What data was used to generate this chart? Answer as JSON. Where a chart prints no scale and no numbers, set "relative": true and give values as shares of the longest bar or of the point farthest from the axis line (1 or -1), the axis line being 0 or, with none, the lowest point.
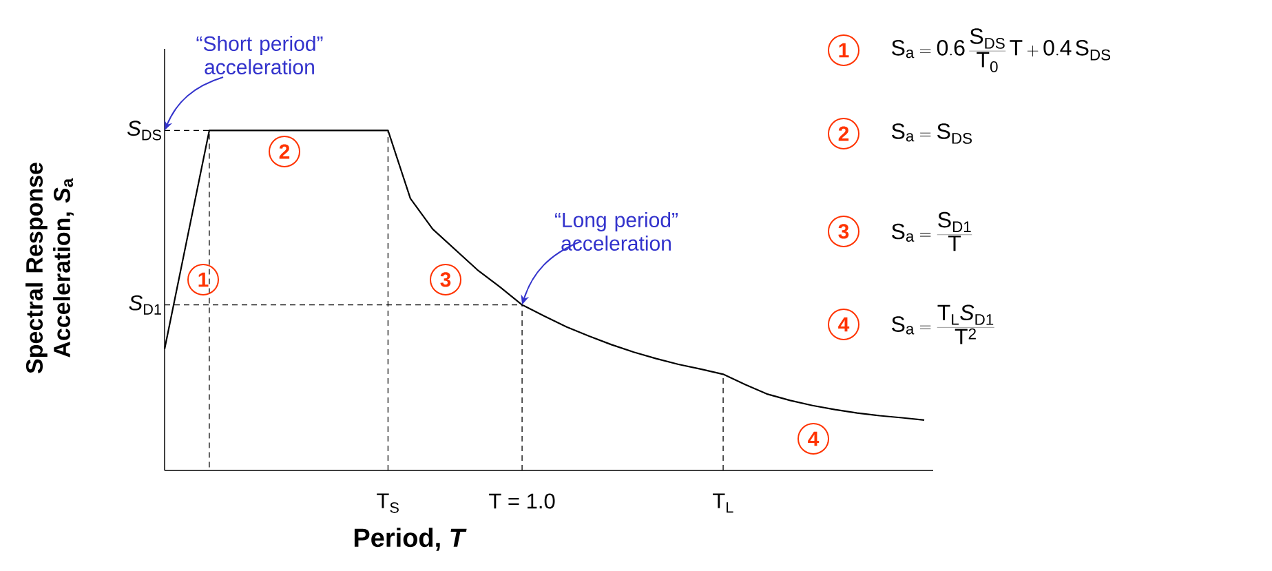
{
  "chart_data": {
    "type": "line",
    "relative": true,
    "categories": [
      null,
      null,
      null,
      null,
      null,
      null,
      null,
      null,
      null,
      null,
      "T$_{S}$",
      null,
      null,
      null,
      null,
      null,
      "T = 1.0",
      null,
      null,
      null,
      null,
      null,
      null,
      null,
      null,
      "T$_{L}$",
      null,
      null,
      null,
      null,
      null,
      null,
      null,
      null,
      null
    ],
    "values": [
      0.357,
      0.679,
      1,
      1,
      1,
      1,
      1,
      1,
      1,
      1,
      1,
      0.8,
      0.71,
      0.65,
      0.59,
      0.54,
      0.487,
      0.454,
      0.422,
      0.395,
      0.37,
      0.348,
      0.329,
      0.312,
      0.298,
      0.283,
      0.252,
      0.224,
      0.206,
      0.191,
      0.179,
      0.169,
      0.161,
      0.155,
      0.148
    ],
    "color": "#000000",
    "xlabel": "Period, *T*",
    "ylabel": "Spectral Response Acceleration, *S*$_{a}$",
    "ref_lines": [
      {
        "axis": "y",
        "value": 1,
        "label": "*S*$_{DS}$",
        "line_style": "dashed"
      },
      {
        "axis": "y",
        "value": 0.487,
        "label": "*S*$_{D1}$",
        "line_style": "dashed"
      },
      {
        "axis": "x",
        "value": "T$_{S}$",
        "line_style": "dashed"
      },
      {
        "axis": "x",
        "value": "T = 1.0",
        "line_style": "dashed"
      },
      {
        "axis": "x",
        "value": "T$_{L}$",
        "line_style": "dashed"
      }
    ],
    "annotations": [
      "1",
      "2",
      "3",
      "4",
      "“Short period” acceleration",
      "“Long period” acceleration",
      "\\mathrm{S_{a}=0.6\\,\\frac{S_{DS}}{T_{0}}\\,T+0.4\\,S_{DS}}",
      "\\mathrm{S_{a}=S_{DS}}",
      "\\mathrm{S_{a}=\\frac{S_{D1}}{T}}",
      "\\mathrm{S_{a}=\\frac{T_{L}\\mathit{S}_{D1}}{T^{2}}}"
    ]
  }
}
